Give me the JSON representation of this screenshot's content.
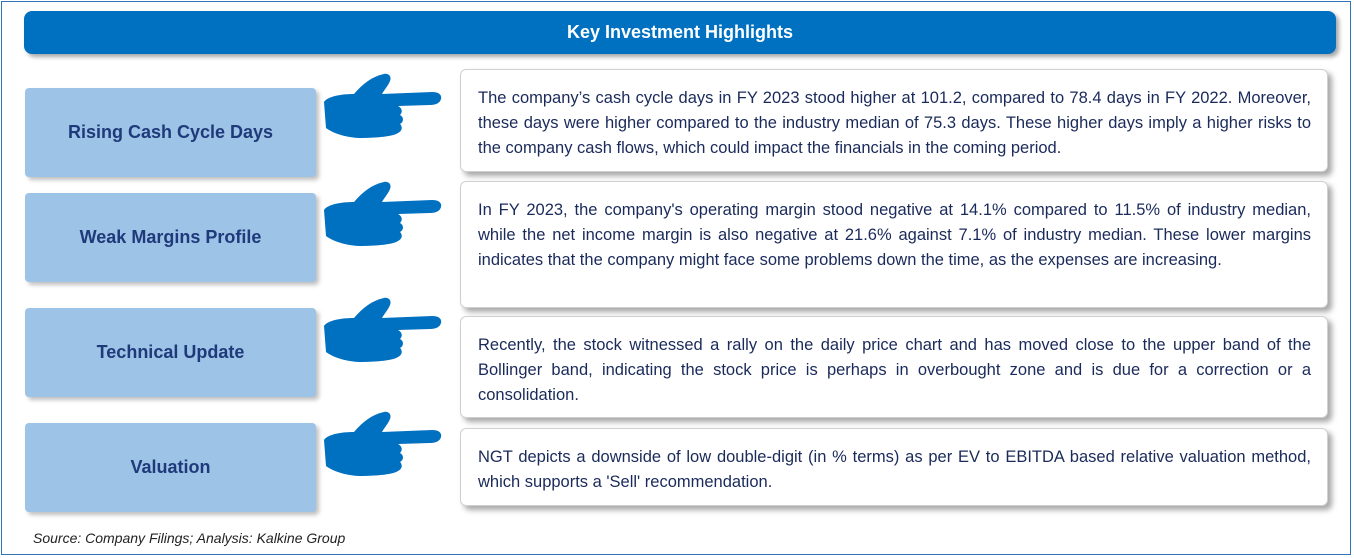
{
  "header": {
    "title": "Key Investment Highlights"
  },
  "highlights": [
    {
      "label": "Rising Cash Cycle Days",
      "text": "The company’s cash cycle days in FY 2023 stood higher at 101.2, compared to 78.4 days in FY 2022. Moreover, these days were higher compared to the industry median of 75.3 days. These higher days imply a higher risks to the company cash flows, which could impact the financials in the coming period."
    },
    {
      "label": "Weak Margins Profile",
      "text": "In FY 2023, the company's operating margin stood negative at 14.1% compared to 11.5% of industry median, while the net income margin is also negative at 21.6% against 7.1% of industry median. These lower margins indicates that the company might face some problems down the time, as the expenses are increasing."
    },
    {
      "label": "Technical Update",
      "text": "Recently, the stock witnessed a rally on the daily price chart and has moved close to the upper band of the Bollinger band, indicating the stock price is perhaps in overbought zone and is due for a correction or a consolidation."
    },
    {
      "label": "Valuation",
      "text": "NGT depicts a downside of low double-digit (in % terms) as per EV to EBITDA based relative valuation method, which supports a 'Sell' recommendation."
    }
  ],
  "footer": {
    "source": "Source: Company Filings; Analysis: Kalkine Group"
  },
  "colors": {
    "header_bg": "#0070c0",
    "label_bg": "#9dc3e6",
    "hand": "#0070c0",
    "label_text": "#1f3a7a"
  },
  "icons": {
    "pointer": "pointing-hand-icon"
  }
}
